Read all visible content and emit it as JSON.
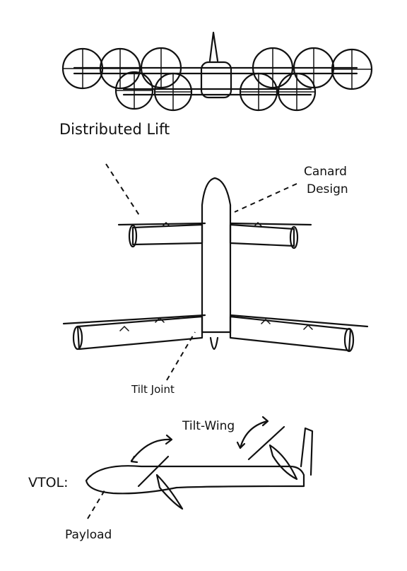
{
  "labels": {
    "distributed_lift": "Distributed Lift",
    "canard_line1": "Canard",
    "canard_line2": "Design",
    "tilt_joint": "Tilt Joint",
    "tilt_wing": "Tilt-Wing",
    "vtol": "VTOL:",
    "payload": "Payload"
  }
}
